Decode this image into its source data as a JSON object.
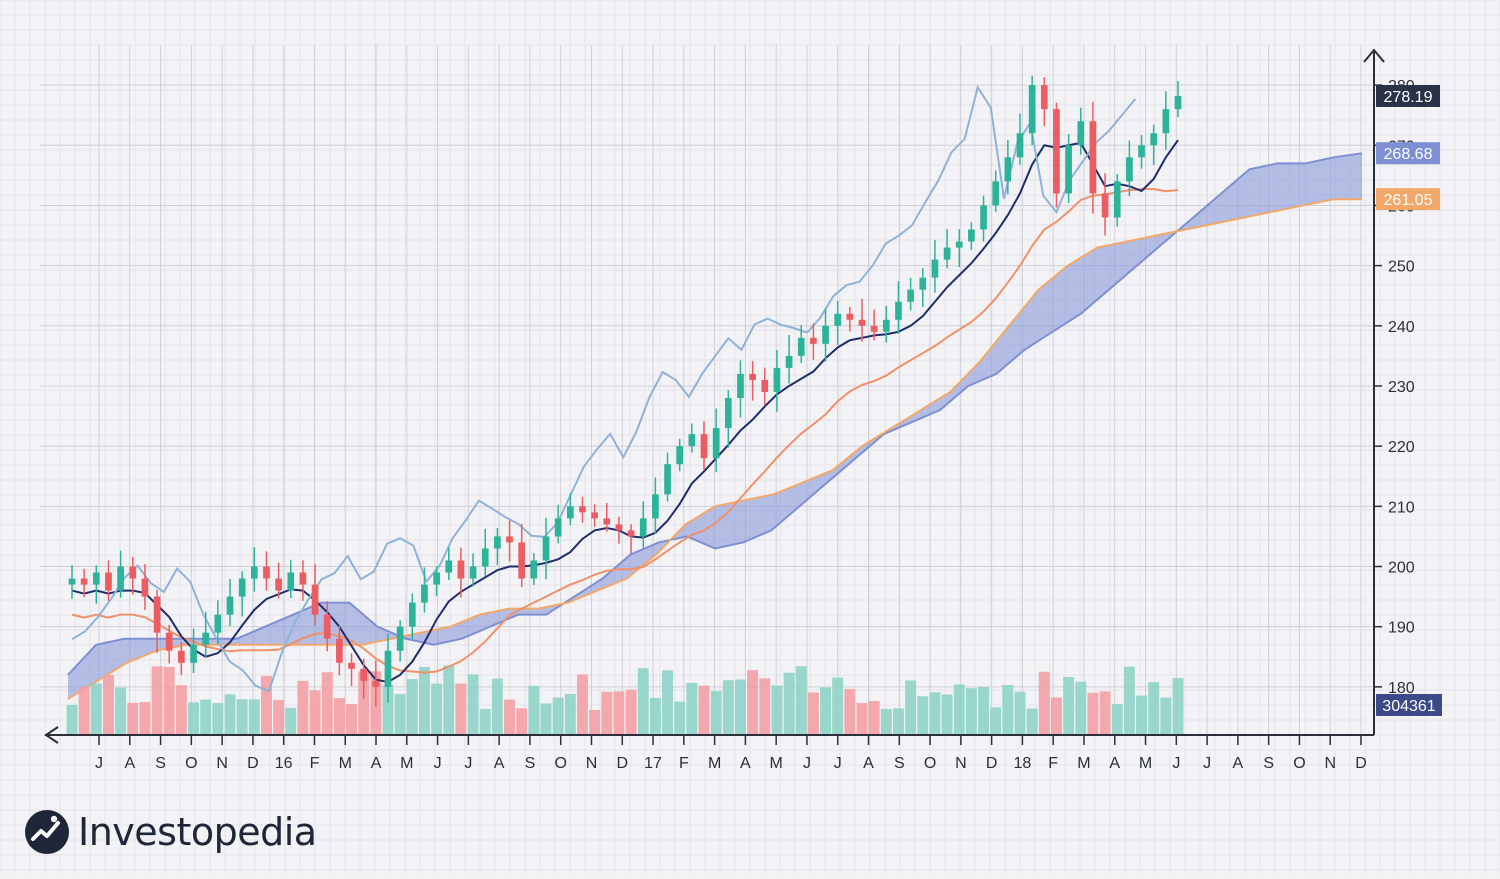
{
  "colors": {
    "background": "#f3f3f6",
    "grid_minor": "#e3e3ea",
    "grid_major": "#cfcfd8",
    "up_candle": "#2db39a",
    "down_candle": "#ec5d63",
    "volume_up": "#8fd3c6",
    "volume_down": "#f2a0a4",
    "tenkan_line": "#1f2d6b",
    "kijun_line": "#f0916a",
    "chikou_line": "#8fb2d9",
    "cloud_fill": "#8a9ad8",
    "span_a": "#7f8fd3",
    "span_b": "#f3a86a",
    "axis": "#2a2f3a",
    "text": "#2a2f3a"
  },
  "brand": {
    "name": "Investopedia",
    "icon": "investopedia-logo-icon"
  },
  "chart_data": {
    "type": "candlestick",
    "title": "",
    "xlabel": "",
    "ylabel": "",
    "grid": true,
    "ylim": [
      172,
      285
    ],
    "y_ticks": [
      180,
      190,
      200,
      210,
      220,
      230,
      240,
      250,
      260,
      270,
      280
    ],
    "x_tick_labels": [
      "J",
      "A",
      "S",
      "O",
      "N",
      "D",
      "16",
      "F",
      "M",
      "A",
      "M",
      "J",
      "J",
      "A",
      "S",
      "O",
      "N",
      "D",
      "17",
      "F",
      "M",
      "A",
      "M",
      "J",
      "J",
      "A",
      "S",
      "O",
      "N",
      "D",
      "18",
      "F",
      "M",
      "A",
      "M",
      "J",
      "J",
      "A",
      "S",
      "O",
      "N",
      "D"
    ],
    "x_period": [
      "2015-06",
      "2018-12"
    ],
    "price_close_candles": [
      198,
      197,
      199,
      196,
      200,
      198,
      195,
      189,
      186,
      184,
      187,
      189,
      192,
      195,
      198,
      200,
      198,
      196,
      199,
      197,
      192,
      188,
      184,
      183,
      181,
      180,
      186,
      190,
      194,
      197,
      199,
      201,
      198,
      200,
      203,
      205,
      204,
      198,
      201,
      205,
      208,
      210,
      209,
      208,
      207,
      206,
      205,
      208,
      212,
      217,
      220,
      222,
      218,
      223,
      228,
      232,
      231,
      229,
      233,
      235,
      238,
      237,
      240,
      242,
      241,
      240,
      239,
      241,
      244,
      246,
      248,
      251,
      253,
      254,
      256,
      260,
      264,
      268,
      272,
      280,
      276,
      262,
      270,
      274,
      262,
      258,
      264,
      268,
      270,
      272,
      276,
      278.19
    ],
    "last_values": {
      "price": "278.19",
      "span_a": "268.68",
      "span_b": "261.05",
      "volume": "304361"
    },
    "series": [
      {
        "type": "candlestick"
      },
      {
        "type": "line",
        "ref": "tenkan_line"
      },
      {
        "type": "line",
        "ref": "kijun_line"
      },
      {
        "type": "line",
        "ref": "chikou_line"
      },
      {
        "type": "area",
        "ref": "cloud",
        "bounds": [
          "span_a",
          "span_b"
        ]
      },
      {
        "type": "bar",
        "ref": "volume"
      }
    ],
    "span_a_values": [
      182,
      187,
      188,
      188,
      188,
      188,
      188,
      190,
      192,
      194,
      194,
      190,
      188,
      187,
      188,
      190,
      192,
      192,
      195,
      198,
      202,
      204,
      205,
      203,
      204,
      206,
      210,
      214,
      218,
      222,
      224,
      226,
      230,
      232,
      236,
      239,
      242,
      246,
      250,
      254,
      258,
      262,
      266,
      267,
      267,
      268,
      268.68
    ],
    "span_b_values": [
      178,
      181,
      184,
      186,
      187,
      187,
      187,
      187,
      187,
      187,
      187,
      188,
      189,
      190,
      192,
      193,
      193,
      194,
      196,
      198,
      202,
      207,
      210,
      211,
      212,
      214,
      216,
      220,
      223,
      226,
      229,
      234,
      240,
      246,
      250,
      253,
      254,
      255,
      256,
      257,
      258,
      259,
      260,
      261,
      261.05
    ]
  }
}
